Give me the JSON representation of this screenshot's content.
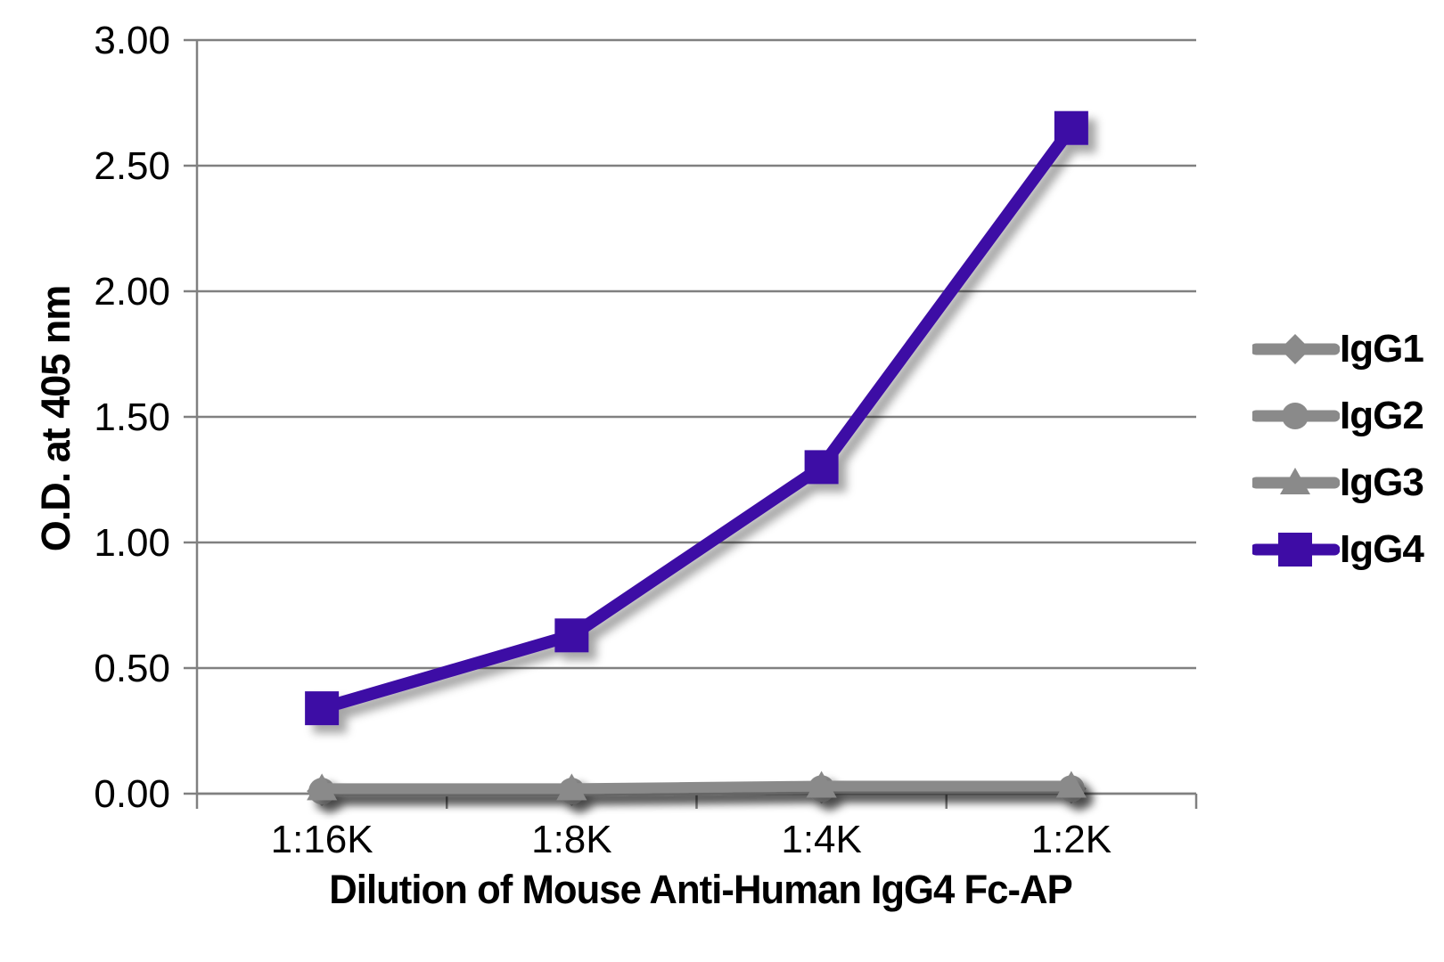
{
  "chart_data": {
    "type": "line",
    "title": "",
    "xlabel": "Dilution of Mouse Anti-Human IgG4 Fc-AP",
    "ylabel": "O.D. at 405 nm",
    "categories": [
      "1:16K",
      "1:8K",
      "1:4K",
      "1:2K"
    ],
    "series": [
      {
        "name": "IgG1",
        "marker": "diamond",
        "color": "#8A8A8A",
        "line_width": 12,
        "values": [
          0.01,
          0.01,
          0.02,
          0.02
        ]
      },
      {
        "name": "IgG2",
        "marker": "circle",
        "color": "#8A8A8A",
        "line_width": 12,
        "values": [
          0.01,
          0.01,
          0.02,
          0.02
        ]
      },
      {
        "name": "IgG3",
        "marker": "triangle",
        "color": "#8A8A8A",
        "line_width": 12,
        "values": [
          0.02,
          0.02,
          0.03,
          0.03
        ]
      },
      {
        "name": "IgG4",
        "marker": "square",
        "color": "#3E0CA5",
        "line_width": 14,
        "values": [
          0.34,
          0.63,
          1.3,
          2.65
        ]
      }
    ],
    "ylim": [
      0,
      3.0
    ],
    "ytick_step": 0.5,
    "ytick_labels": [
      "0.00",
      "0.50",
      "1.00",
      "1.50",
      "2.00",
      "2.50",
      "3.00"
    ],
    "grid": true,
    "legend_position": "right"
  },
  "style": {
    "background": "#ffffff",
    "grid_color": "#808080",
    "axis_color": "#808080",
    "text_color": "#000000",
    "accent_purple": "#3E0CA5",
    "series_gray": "#8A8A8A"
  }
}
